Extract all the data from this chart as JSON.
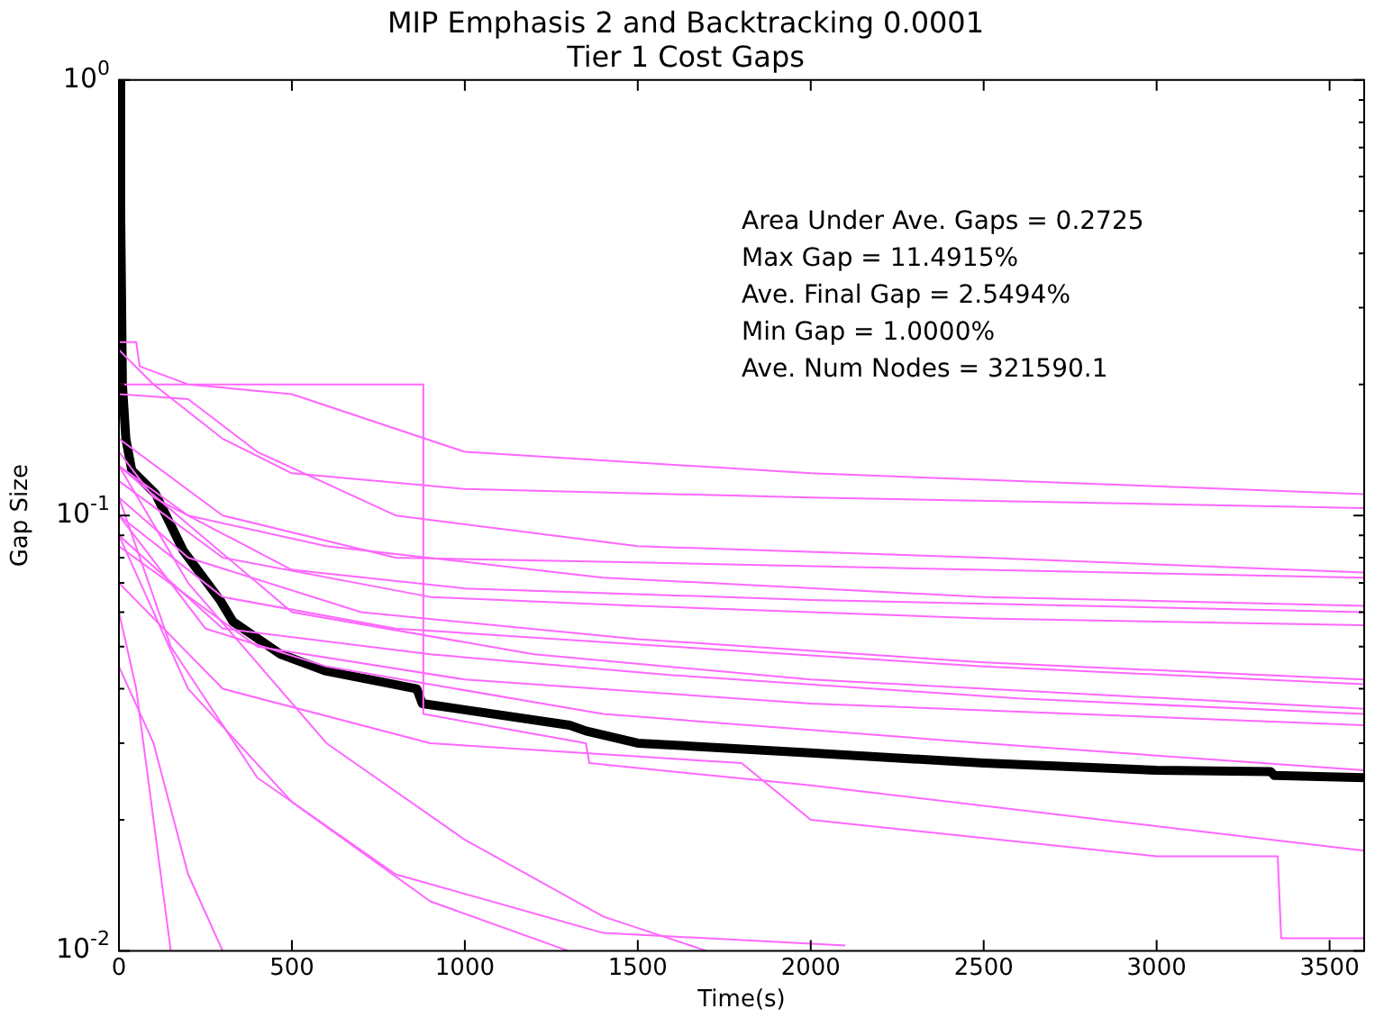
{
  "chart_data": {
    "type": "line",
    "title": "MIP Emphasis 2 and Backtracking 0.0001\nTier 1 Cost Gaps",
    "xlabel": "Time(s)",
    "ylabel": "Gap Size",
    "log": "y",
    "grid": false,
    "legend": false,
    "marker": "none",
    "line_style": "solid",
    "xlim": [
      0,
      3600
    ],
    "xticks": [
      0,
      500,
      1000,
      1500,
      2000,
      2500,
      3000,
      3500
    ],
    "ylim": [
      0.01,
      1
    ],
    "yticks": [
      {
        "value": 0.01,
        "label": "10$^{-2}$"
      },
      {
        "value": 0.02,
        "label": null
      },
      {
        "value": 0.03,
        "label": null
      },
      {
        "value": 0.04,
        "label": null
      },
      {
        "value": 0.05,
        "label": null
      },
      {
        "value": 0.06,
        "label": null
      },
      {
        "value": 0.07,
        "label": null
      },
      {
        "value": 0.08,
        "label": null
      },
      {
        "value": 0.09,
        "label": null
      },
      {
        "value": 0.1,
        "label": "10$^{-1}$"
      },
      {
        "value": 0.2,
        "label": null
      },
      {
        "value": 0.3,
        "label": null
      },
      {
        "value": 0.4,
        "label": null
      },
      {
        "value": 0.5,
        "label": null
      },
      {
        "value": 0.6,
        "label": null
      },
      {
        "value": 0.7,
        "label": null
      },
      {
        "value": 0.8,
        "label": null
      },
      {
        "value": 0.9,
        "label": null
      },
      {
        "value": 1,
        "label": "10$^{0}$"
      }
    ],
    "annotations": [
      "Area Under Ave. Gaps = 0.2725",
      "Max Gap = 11.4915%",
      "Ave. Final Gap = 2.5494%",
      "Min Gap = 1.0000%",
      "Ave. Num Nodes = 321590.1"
    ],
    "series": [
      {
        "color": "#ff66ff",
        "x": [
          0,
          50,
          60,
          200,
          500,
          1000,
          2000,
          3600
        ],
        "values": [
          0.25,
          0.25,
          0.22,
          0.2,
          0.19,
          0.14,
          0.125,
          0.112
        ]
      },
      {
        "color": "#ff66ff",
        "x": [
          0,
          100,
          300,
          500,
          1000,
          2000,
          3600
        ],
        "values": [
          0.24,
          0.2,
          0.15,
          0.125,
          0.115,
          0.11,
          0.104
        ]
      },
      {
        "color": "#ff66ff",
        "x": [
          0,
          200,
          400,
          800,
          1500,
          2500,
          3600
        ],
        "values": [
          0.19,
          0.185,
          0.14,
          0.1,
          0.085,
          0.08,
          0.074
        ]
      },
      {
        "color": "#ff66ff",
        "x": [
          0,
          300,
          800,
          1500,
          2500,
          3600
        ],
        "values": [
          0.15,
          0.1,
          0.08,
          0.078,
          0.075,
          0.072
        ]
      },
      {
        "color": "#ff66ff",
        "x": [
          0,
          200,
          600,
          1400,
          2500,
          3600
        ],
        "values": [
          0.13,
          0.1,
          0.085,
          0.072,
          0.065,
          0.062
        ]
      },
      {
        "color": "#ff66ff",
        "x": [
          0,
          100,
          500,
          1000,
          2000,
          3600
        ],
        "values": [
          0.14,
          0.11,
          0.075,
          0.068,
          0.064,
          0.06
        ]
      },
      {
        "color": "#ff66ff",
        "x": [
          0,
          300,
          900,
          1500,
          2500,
          3600
        ],
        "values": [
          0.12,
          0.08,
          0.065,
          0.062,
          0.058,
          0.056
        ]
      },
      {
        "color": "#ff66ff",
        "x": [
          0,
          200,
          700,
          1500,
          2500,
          3600
        ],
        "values": [
          0.11,
          0.08,
          0.06,
          0.052,
          0.046,
          0.042
        ]
      },
      {
        "color": "#ff66ff",
        "x": [
          0,
          300,
          800,
          1600,
          2500,
          3600
        ],
        "values": [
          0.1,
          0.065,
          0.055,
          0.05,
          0.045,
          0.041
        ]
      },
      {
        "color": "#ff66ff",
        "x": [
          0,
          500,
          1200,
          2000,
          3600
        ],
        "values": [
          0.13,
          0.06,
          0.048,
          0.042,
          0.036
        ]
      },
      {
        "color": "#ff66ff",
        "x": [
          0,
          300,
          900,
          1600,
          2600,
          3600
        ],
        "values": [
          0.09,
          0.055,
          0.048,
          0.043,
          0.038,
          0.035
        ]
      },
      {
        "color": "#ff66ff",
        "x": [
          0,
          400,
          1000,
          2000,
          3600
        ],
        "values": [
          0.085,
          0.05,
          0.042,
          0.037,
          0.033
        ]
      },
      {
        "color": "#ff66ff",
        "x": [
          0,
          250,
          600,
          1400,
          2500,
          3600
        ],
        "values": [
          0.1,
          0.055,
          0.045,
          0.035,
          0.03,
          0.026
        ]
      },
      {
        "color": "#ff66ff",
        "x": [
          0,
          880,
          880,
          1350,
          1360,
          2000,
          3600
        ],
        "values": [
          0.2,
          0.2,
          0.035,
          0.03,
          0.027,
          0.024,
          0.017
        ]
      },
      {
        "color": "#ff66ff",
        "x": [
          0,
          300,
          900,
          1800,
          2000,
          3000,
          3350,
          3360,
          3600
        ],
        "values": [
          0.07,
          0.04,
          0.03,
          0.027,
          0.02,
          0.0165,
          0.0165,
          0.0107,
          0.0107
        ]
      },
      {
        "color": "#ff66ff",
        "x": [
          0,
          200,
          500,
          900,
          1300
        ],
        "values": [
          0.09,
          0.04,
          0.022,
          0.013,
          0.01
        ]
      },
      {
        "color": "#ff66ff",
        "x": [
          0,
          150,
          400,
          800,
          1400,
          2100
        ],
        "values": [
          0.11,
          0.05,
          0.025,
          0.015,
          0.011,
          0.0103
        ]
      },
      {
        "color": "#ff66ff",
        "x": [
          0,
          100,
          200,
          300
        ],
        "values": [
          0.045,
          0.03,
          0.015,
          0.01
        ]
      },
      {
        "color": "#ff66ff",
        "x": [
          0,
          50,
          150
        ],
        "values": [
          0.06,
          0.04,
          0.01
        ]
      },
      {
        "color": "#ff66ff",
        "x": [
          0,
          200,
          600,
          1000,
          1400,
          1700
        ],
        "values": [
          0.13,
          0.07,
          0.03,
          0.018,
          0.012,
          0.01
        ]
      },
      {
        "color": "#000000",
        "x": [
          0,
          5,
          10,
          20,
          37,
          106,
          186,
          292,
          330,
          468,
          596,
          861,
          877,
          1303,
          1350,
          1500,
          2000,
          2500,
          3000,
          3330,
          3340,
          3600
        ],
        "values": [
          1,
          0.5,
          0.2,
          0.15,
          0.127,
          0.112,
          0.083,
          0.064,
          0.057,
          0.048,
          0.044,
          0.04,
          0.037,
          0.033,
          0.032,
          0.03,
          0.0285,
          0.027,
          0.026,
          0.0258,
          0.0253,
          0.025
        ]
      }
    ]
  }
}
